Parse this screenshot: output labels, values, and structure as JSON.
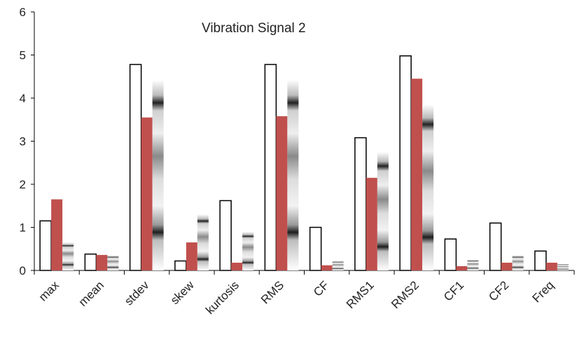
{
  "chart_data": {
    "type": "bar",
    "title": "Vibration Signal  2",
    "xlabel": "",
    "ylabel": "",
    "ylim": [
      0,
      6
    ],
    "yticks": [
      "0",
      "1",
      "2",
      "3",
      "4",
      "5",
      "6"
    ],
    "grid": false,
    "legend": "none",
    "categories": [
      "max",
      "mean",
      "stdev",
      "skew",
      "kurtosis",
      "RMS",
      "CF",
      "RMS1",
      "RMS2",
      "CF1",
      "CF2",
      "Freq"
    ],
    "series": [
      {
        "values": [
          1.15,
          0.38,
          4.78,
          0.22,
          1.62,
          4.78,
          1.0,
          3.08,
          4.98,
          0.73,
          1.1,
          0.45
        ],
        "color": "#ffffff",
        "stroke": "#000000",
        "pattern": "solid"
      },
      {
        "values": [
          1.65,
          0.36,
          3.55,
          0.65,
          0.18,
          3.58,
          0.12,
          2.15,
          4.45,
          0.1,
          0.18,
          0.18
        ],
        "color": "#c0504d",
        "stroke": "none",
        "pattern": "solid"
      },
      {
        "values": [
          0.65,
          0.35,
          4.42,
          1.3,
          0.9,
          4.42,
          0.22,
          2.75,
          3.85,
          0.25,
          0.35,
          0.15
        ],
        "color": "#a0a0a0",
        "stroke": "none",
        "pattern": "gray-stripes"
      }
    ]
  }
}
